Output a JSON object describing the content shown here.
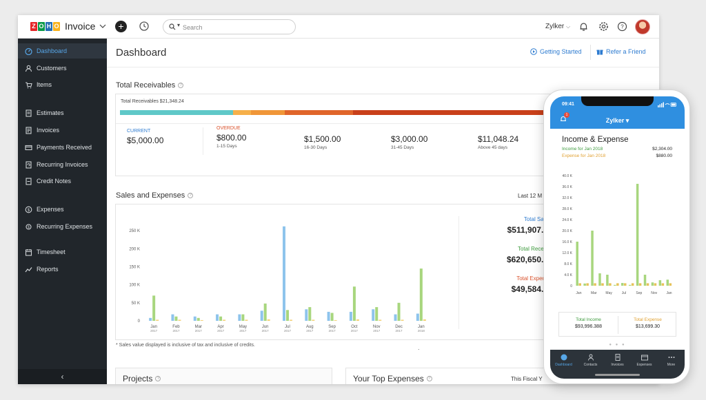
{
  "app": {
    "name": "Invoice",
    "logo_letters": [
      "Z",
      "O",
      "H",
      "O"
    ]
  },
  "topbar": {
    "search_placeholder": "Search",
    "org_name": "Zylker"
  },
  "sidebar": {
    "items": [
      {
        "label": "Dashboard",
        "icon": "dashboard-icon",
        "active": true
      },
      {
        "label": "Customers",
        "icon": "user-icon"
      },
      {
        "label": "Items",
        "icon": "cart-icon"
      },
      {
        "label": "Estimates",
        "icon": "document-icon"
      },
      {
        "label": "Invoices",
        "icon": "invoice-icon"
      },
      {
        "label": "Payments Received",
        "icon": "payment-icon"
      },
      {
        "label": "Recurring Invoices",
        "icon": "recurring-icon"
      },
      {
        "label": "Credit Notes",
        "icon": "credit-note-icon"
      },
      {
        "label": "Expenses",
        "icon": "expense-icon"
      },
      {
        "label": "Recurring Expenses",
        "icon": "recurring-expense-icon"
      },
      {
        "label": "Timesheet",
        "icon": "timesheet-icon"
      },
      {
        "label": "Reports",
        "icon": "reports-icon"
      }
    ],
    "collapse_glyph": "‹"
  },
  "page": {
    "title": "Dashboard",
    "getting_started": "Getting Started",
    "refer_friend": "Refer a Friend"
  },
  "receivables": {
    "title": "Total Receivables",
    "caption": "Total Receivables $21,348.24",
    "columns": [
      {
        "label": "CURRENT",
        "amount": "$5,000.00",
        "sub": ""
      },
      {
        "label": "OVERDUE",
        "amount": "$800.00",
        "sub": "1-15 Days"
      },
      {
        "label": "",
        "amount": "$1,500.00",
        "sub": "16-30 Days"
      },
      {
        "label": "",
        "amount": "$3,000.00",
        "sub": "31-45 Days"
      },
      {
        "label": "",
        "amount": "$11,048.24",
        "sub": "Above 45 days"
      }
    ],
    "bar_segments": [
      {
        "value": 5000,
        "color": "#5fc8c8"
      },
      {
        "value": 800,
        "color": "#f6b04a"
      },
      {
        "value": 1500,
        "color": "#f09638"
      },
      {
        "value": 3000,
        "color": "#e0652a"
      },
      {
        "value": 11048.24,
        "color": "#c9401a"
      }
    ]
  },
  "sales": {
    "title": "Sales and Expenses",
    "period": "Last 12 M",
    "totals": [
      {
        "label": "Total Sale",
        "amount": "$511,907.0",
        "color": "#2d7bd0"
      },
      {
        "label": "Total Receip",
        "amount": "$620,650.7",
        "color": "#3c9a3c"
      },
      {
        "label": "Total Expens",
        "amount": "$49,584.5",
        "color": "#d9502a"
      }
    ],
    "footnote": "* Sales value displayed is inclusive of tax and inclusive of credits.",
    "dot": "."
  },
  "chart_data": [
    {
      "type": "bar",
      "categories": [
        "Jan",
        "Feb",
        "Mar",
        "Apr",
        "May",
        "Jun",
        "Jul",
        "Aug",
        "Sep",
        "Oct",
        "Nov",
        "Dec",
        "Jan"
      ],
      "category_years": [
        "2017",
        "2017",
        "2017",
        "2017",
        "2017",
        "2017",
        "2017",
        "2017",
        "2017",
        "2017",
        "2017",
        "2017",
        "2018"
      ],
      "series": [
        {
          "values": [
            8000,
            18000,
            12000,
            18000,
            18000,
            28000,
            262000,
            32000,
            25000,
            25000,
            32000,
            18000,
            20000
          ],
          "color": "#8ec4ec"
        },
        {
          "values": [
            70000,
            12000,
            8000,
            12000,
            18000,
            48000,
            30000,
            38000,
            22000,
            95000,
            38000,
            50000,
            145000
          ],
          "color": "#a8d67e"
        },
        {
          "values": [
            3000,
            3000,
            2000,
            3000,
            3000,
            4000,
            3000,
            3000,
            2000,
            4000,
            3000,
            3000,
            4000
          ],
          "color": "#f3d27a"
        }
      ],
      "y_ticks": [
        "0",
        "50 K",
        "100 K",
        "150 K",
        "200 K",
        "250 K"
      ],
      "ylim": [
        0,
        275000
      ]
    },
    {
      "type": "bar",
      "title": "Income & Expense",
      "categories": [
        "Jan",
        "Feb",
        "Mar",
        "Apr",
        "May",
        "Jun",
        "Jul",
        "Aug",
        "Sep",
        "Oct",
        "Nov",
        "Dec",
        "Jan"
      ],
      "x_labels": [
        "Jan",
        "",
        "Mar",
        "",
        "May",
        "",
        "Jul",
        "",
        "Sep",
        "",
        "Nov",
        "",
        "Jan"
      ],
      "series": [
        {
          "name": "Total Income",
          "values": [
            16000,
            800,
            20000,
            4500,
            4000,
            300,
            1000,
            300,
            37000,
            4000,
            1200,
            2000,
            2200
          ],
          "color": "#a8d67e"
        },
        {
          "name": "Total Expense",
          "values": [
            900,
            900,
            900,
            900,
            900,
            900,
            900,
            900,
            900,
            900,
            900,
            900,
            900
          ],
          "color": "#e6c35a"
        }
      ],
      "y_ticks": [
        "0",
        "4.0 K",
        "8.0 K",
        "12.0 K",
        "16.0 K",
        "20.0 K",
        "24.0 K",
        "28.0 K",
        "32.0 K",
        "36.0 K",
        "40.0 K"
      ],
      "ylim": [
        0,
        40000
      ]
    }
  ],
  "projects": {
    "title": "Projects"
  },
  "top_expenses": {
    "title": "Your Top Expenses",
    "period": "This Fiscal Y"
  },
  "phone": {
    "time": "09:41",
    "badge": "1",
    "org_name": "Zylker ▾",
    "title": "Income & Expense",
    "income_label": "Income for Jan 2018",
    "income_value": "$2,304.00",
    "expense_label": "Expense for Jan 2018",
    "expense_value": "$880.00",
    "total_income_label": "Total Income",
    "total_income_value": "$93,996.388",
    "total_expense_label": "Total Expense",
    "total_expense_value": "$13,699.30",
    "dots": "● ● ●",
    "tabs": [
      {
        "label": "Dashboard",
        "icon": "dashboard-icon",
        "active": true
      },
      {
        "label": "Contacts",
        "icon": "contacts-icon"
      },
      {
        "label": "Invoices",
        "icon": "invoice-icon"
      },
      {
        "label": "Expenses",
        "icon": "expense-icon"
      },
      {
        "label": "More",
        "icon": "more-icon"
      }
    ]
  }
}
